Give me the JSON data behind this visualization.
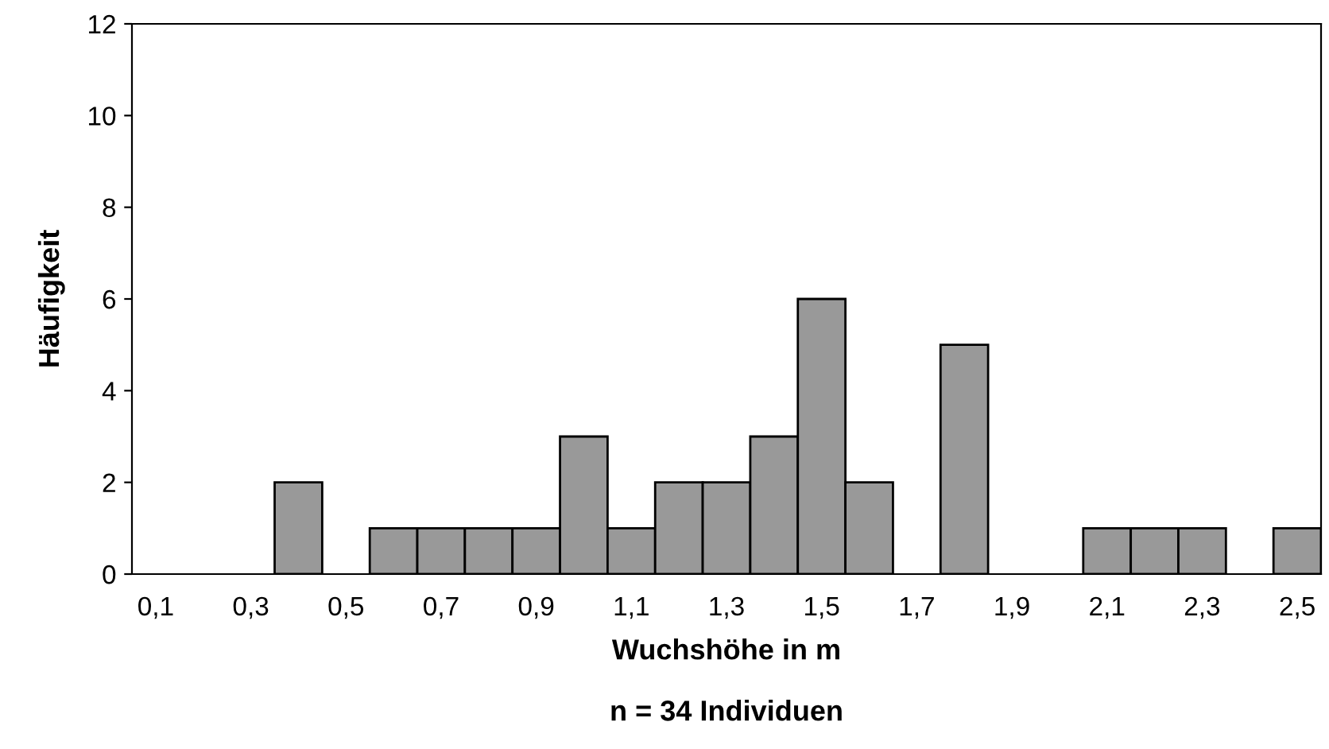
{
  "chart_data": {
    "type": "bar",
    "xlabel": "Wuchshöhe in m",
    "ylabel": "Häufigkeit",
    "annotations": [
      "n = 34 Individuen"
    ],
    "categories": [
      "0,1",
      null,
      "0,3",
      null,
      "0,5",
      null,
      "0,7",
      null,
      "0,9",
      null,
      "1,1",
      null,
      "1,3",
      null,
      "1,5",
      null,
      "1,7",
      null,
      "1,9",
      null,
      "2,1",
      null,
      "2,3",
      null,
      "2,5"
    ],
    "values": [
      0,
      0,
      0,
      2,
      0,
      1,
      1,
      1,
      1,
      3,
      1,
      2,
      2,
      3,
      6,
      2,
      0,
      5,
      0,
      0,
      1,
      1,
      1,
      0,
      1
    ],
    "color": "#999999",
    "ylim": [
      0,
      12
    ],
    "yticks": [
      0,
      2,
      4,
      6,
      8,
      10,
      12
    ],
    "grid": false
  }
}
